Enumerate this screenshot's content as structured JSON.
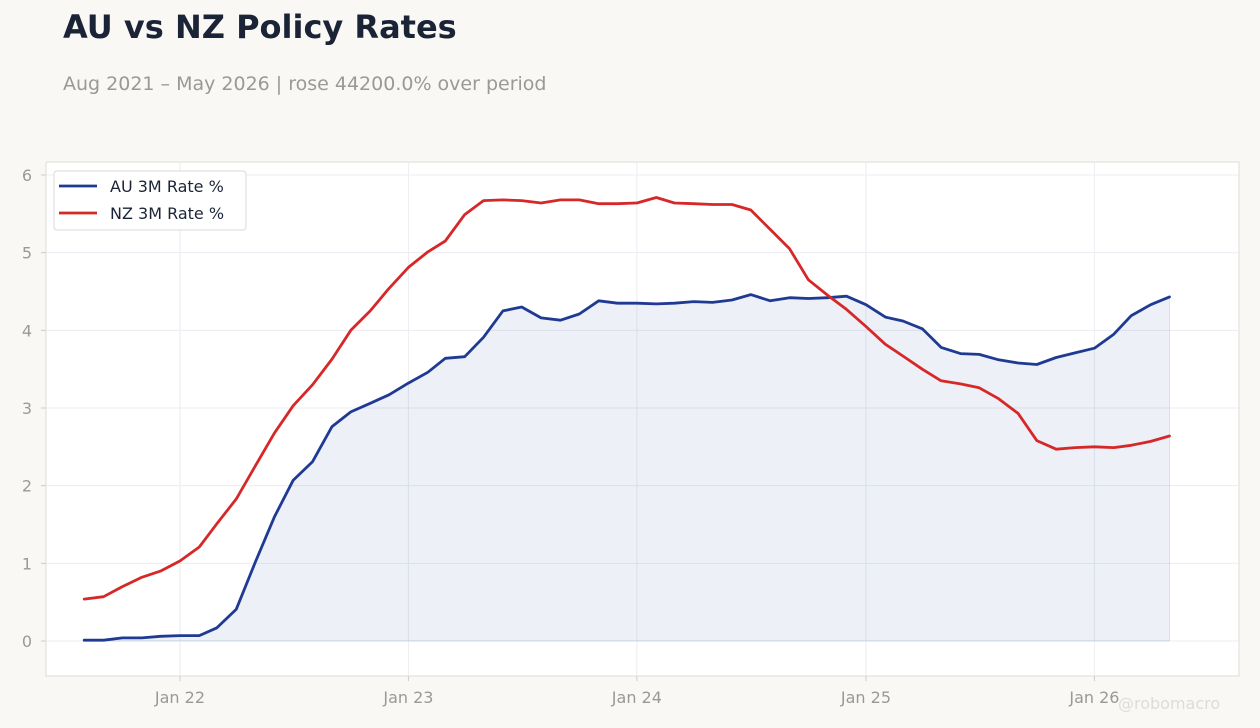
{
  "title": "AU vs NZ Policy Rates",
  "subtitle": "Aug 2021 – May 2026 | rose 44200.0% over period",
  "watermark": "@robomacro",
  "colors": {
    "au": "#1f3a93",
    "nz": "#d62828",
    "area_fill": "#1f3a93",
    "background": "#f9f8f5",
    "plot_background": "#ffffff",
    "grid": "#ececf2",
    "axis_text": "#999999"
  },
  "chart_data": {
    "type": "line",
    "xlabel": "",
    "ylabel": "",
    "ylim": [
      0,
      6
    ],
    "xlim": [
      "2021-06-01",
      "2026-08-20"
    ],
    "yticks": [
      0,
      1,
      2,
      3,
      4,
      5,
      6
    ],
    "xticks": [
      {
        "label": "Jan 22",
        "date": "2022-01-01"
      },
      {
        "label": "Jan 23",
        "date": "2023-01-01"
      },
      {
        "label": "Jan 24",
        "date": "2024-01-01"
      },
      {
        "label": "Jan 25",
        "date": "2025-01-01"
      },
      {
        "label": "Jan 26",
        "date": "2026-01-01"
      }
    ],
    "grid": true,
    "legend": "top-left",
    "x": [
      "2021-08-01",
      "2021-09-01",
      "2021-10-01",
      "2021-11-01",
      "2021-12-01",
      "2022-01-01",
      "2022-02-01",
      "2022-03-01",
      "2022-04-01",
      "2022-05-01",
      "2022-06-01",
      "2022-07-01",
      "2022-08-01",
      "2022-09-01",
      "2022-10-01",
      "2022-11-01",
      "2022-12-01",
      "2023-01-01",
      "2023-02-01",
      "2023-03-01",
      "2023-04-01",
      "2023-05-01",
      "2023-06-01",
      "2023-07-01",
      "2023-08-01",
      "2023-09-01",
      "2023-10-01",
      "2023-11-01",
      "2023-12-01",
      "2024-01-01",
      "2024-02-01",
      "2024-03-01",
      "2024-04-01",
      "2024-05-01",
      "2024-06-01",
      "2024-07-01",
      "2024-08-01",
      "2024-09-01",
      "2024-10-01",
      "2024-11-01",
      "2024-12-01",
      "2025-01-01",
      "2025-02-01",
      "2025-03-01",
      "2025-04-01",
      "2025-05-01",
      "2025-06-01",
      "2025-07-01",
      "2025-08-01",
      "2025-09-01",
      "2025-10-01",
      "2025-11-01",
      "2025-12-01",
      "2026-01-01",
      "2026-02-01",
      "2026-03-01",
      "2026-04-01",
      "2026-05-01"
    ],
    "series": [
      {
        "name": "AU 3M Rate %",
        "color": "#1f3a93",
        "filled": true,
        "values": [
          0.01,
          0.01,
          0.04,
          0.04,
          0.06,
          0.07,
          0.07,
          0.17,
          0.41,
          1.01,
          1.6,
          2.07,
          2.31,
          2.76,
          2.95,
          3.06,
          3.17,
          3.32,
          3.46,
          3.64,
          3.66,
          3.91,
          4.25,
          4.3,
          4.16,
          4.13,
          4.21,
          4.38,
          4.35,
          4.35,
          4.34,
          4.35,
          4.37,
          4.36,
          4.39,
          4.46,
          4.38,
          4.42,
          4.41,
          4.42,
          4.44,
          4.33,
          4.17,
          4.12,
          4.02,
          3.78,
          3.7,
          3.69,
          3.62,
          3.58,
          3.56,
          3.65,
          3.71,
          3.77,
          3.95,
          4.19,
          4.33,
          4.43
        ]
      },
      {
        "name": "NZ 3M Rate %",
        "color": "#d62828",
        "filled": false,
        "values": [
          0.54,
          0.57,
          0.7,
          0.82,
          0.9,
          1.03,
          1.21,
          1.51,
          1.83,
          2.25,
          2.68,
          3.03,
          3.3,
          3.63,
          4.0,
          4.25,
          4.54,
          4.81,
          5.01,
          5.15,
          5.49,
          5.67,
          5.68,
          5.67,
          5.64,
          5.68,
          5.68,
          5.63,
          5.63,
          5.64,
          5.71,
          5.64,
          5.63,
          5.62,
          5.62,
          5.55,
          5.3,
          5.05,
          4.65,
          4.45,
          4.27,
          4.05,
          3.82,
          3.67,
          3.5,
          3.35,
          3.31,
          3.26,
          3.12,
          2.93,
          2.58,
          2.47,
          2.49,
          2.5,
          2.49,
          2.52,
          2.57,
          2.64
        ]
      }
    ]
  }
}
